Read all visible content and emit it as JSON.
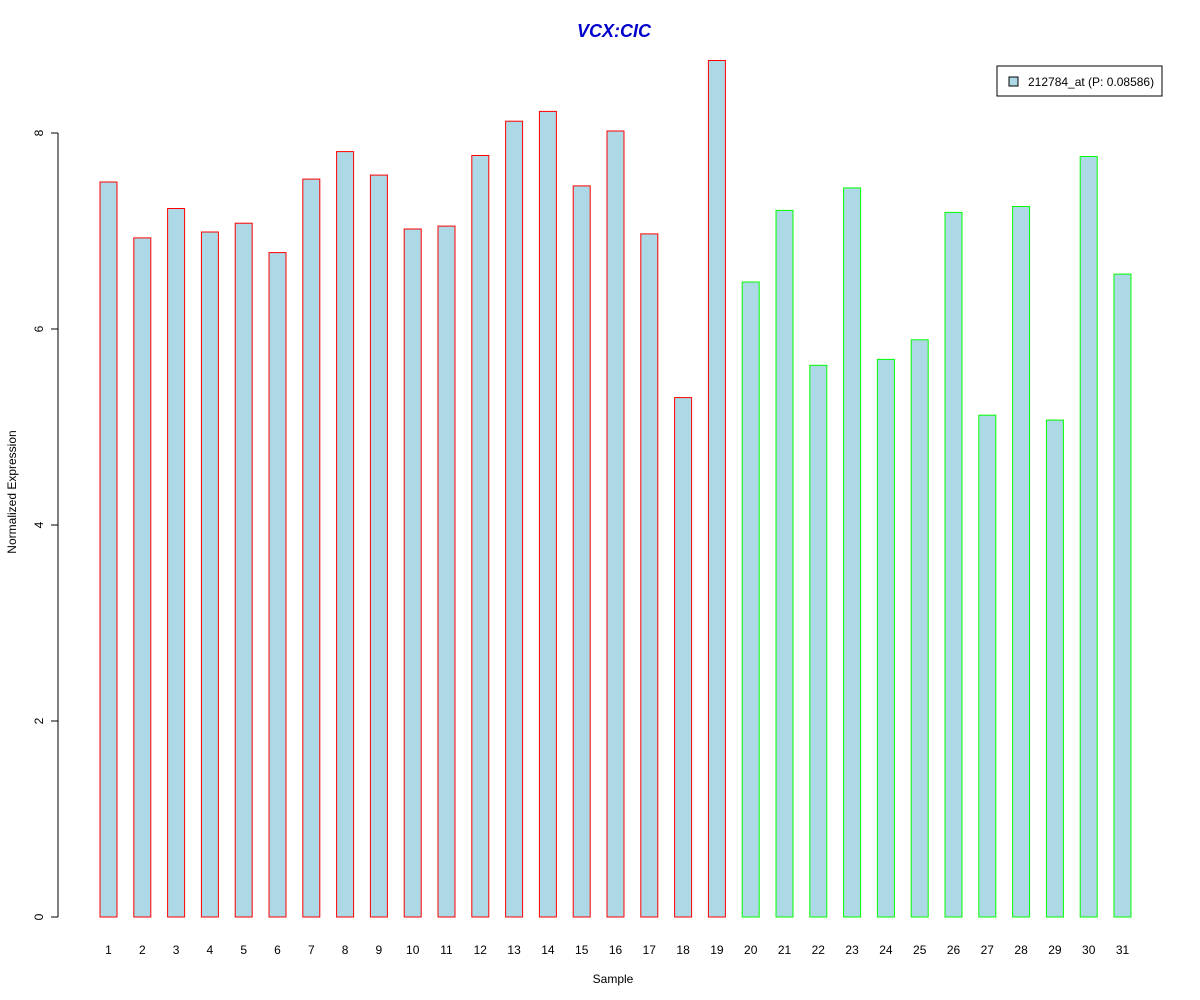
{
  "chart_data": {
    "type": "bar",
    "title": "VCX:CIC",
    "xlabel": "Sample",
    "ylabel": "Normalized Expression",
    "ylim": [
      0,
      8.8
    ],
    "yticks": [
      0,
      2,
      4,
      6,
      8
    ],
    "categories": [
      "1",
      "2",
      "3",
      "4",
      "5",
      "6",
      "7",
      "8",
      "9",
      "10",
      "11",
      "12",
      "13",
      "14",
      "15",
      "16",
      "17",
      "18",
      "19",
      "20",
      "21",
      "22",
      "23",
      "24",
      "25",
      "26",
      "27",
      "28",
      "29",
      "30",
      "31"
    ],
    "series": [
      {
        "name": "212784_at (P: 0.08586)",
        "values": [
          7.5,
          6.93,
          7.23,
          6.99,
          7.08,
          6.78,
          7.53,
          7.81,
          7.57,
          7.02,
          7.05,
          7.77,
          8.12,
          8.22,
          7.46,
          8.02,
          6.97,
          5.3,
          8.74,
          6.48,
          7.21,
          5.63,
          7.44,
          5.69,
          5.89,
          7.19,
          5.12,
          7.25,
          5.07,
          7.76,
          6.56
        ]
      }
    ],
    "group_split_index": 19,
    "grid": false,
    "legend_position": "top-right",
    "colors": {
      "bar_fill": "#add8e6",
      "group1_border": "#ff0000",
      "group2_border": "#00ff00",
      "title": "#0000cc",
      "axis": "#000000"
    }
  }
}
